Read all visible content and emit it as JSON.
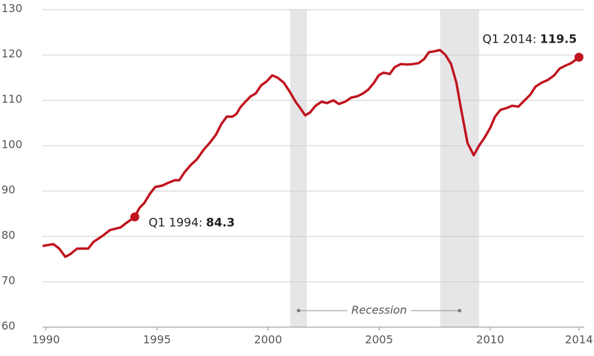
{
  "chart_data": {
    "type": "line",
    "x": [
      1989.85,
      1990.34,
      1990.6,
      1990.87,
      1991.1,
      1991.4,
      1991.64,
      1991.9,
      1992.14,
      1992.57,
      1992.88,
      1993.37,
      1993.6,
      1994.0,
      1994.2,
      1994.43,
      1994.68,
      1994.92,
      1995.23,
      1995.5,
      1995.8,
      1996.0,
      1996.25,
      1996.53,
      1996.8,
      1997.1,
      1997.37,
      1997.65,
      1997.9,
      1998.14,
      1998.39,
      1998.58,
      1998.76,
      1998.98,
      1999.22,
      1999.44,
      1999.69,
      1999.94,
      2000.19,
      2000.43,
      2000.71,
      2000.99,
      2001.24,
      2001.46,
      2001.67,
      2001.89,
      2002.14,
      2002.41,
      2002.66,
      2002.94,
      2003.19,
      2003.47,
      2003.75,
      2004.02,
      2004.27,
      2004.52,
      2004.77,
      2004.98,
      2005.2,
      2005.48,
      2005.7,
      2005.98,
      2006.25,
      2006.53,
      2006.78,
      2007.03,
      2007.24,
      2007.49,
      2007.74,
      2007.99,
      2008.24,
      2008.48,
      2008.7,
      2008.98,
      2009.26,
      2009.5,
      2009.75,
      2010.0,
      2010.22,
      2010.46,
      2010.74,
      2010.99,
      2011.27,
      2011.55,
      2011.8,
      2012.04,
      2012.32,
      2012.6,
      2012.88,
      2013.13,
      2013.37,
      2013.65,
      2014.0
    ],
    "series": [
      {
        "color": "#c0141e",
        "values": [
          77.9,
          78.3,
          77.3,
          75.5,
          76.1,
          77.3,
          77.3,
          77.3,
          78.8,
          80.2,
          81.4,
          82.0,
          82.9,
          84.3,
          86.2,
          87.4,
          89.4,
          90.9,
          91.2,
          91.8,
          92.4,
          92.4,
          94.2,
          95.8,
          97.0,
          99.1,
          100.6,
          102.4,
          104.8,
          106.4,
          106.4,
          107.0,
          108.5,
          109.7,
          110.9,
          111.5,
          113.3,
          114.2,
          115.5,
          115.0,
          113.9,
          111.8,
          109.7,
          108.2,
          106.7,
          107.3,
          108.8,
          109.7,
          109.4,
          110.0,
          109.2,
          109.7,
          110.6,
          110.9,
          111.5,
          112.4,
          113.9,
          115.5,
          116.1,
          115.8,
          117.3,
          118.0,
          117.9,
          118.0,
          118.2,
          119.1,
          120.6,
          120.8,
          121.1,
          120.0,
          118.0,
          113.9,
          107.9,
          100.6,
          97.9,
          100.0,
          101.8,
          103.9,
          106.4,
          107.9,
          108.3,
          108.8,
          108.6,
          110.0,
          111.2,
          113.0,
          113.9,
          114.5,
          115.5,
          117.0,
          117.6,
          118.2,
          119.5
        ]
      }
    ],
    "xlim": [
      1989.85,
      2014.15
    ],
    "xticks": [
      1990,
      1995,
      2000,
      2005,
      2010,
      2014
    ],
    "ylim": [
      60,
      130
    ],
    "yticks": [
      60,
      70,
      80,
      90,
      100,
      110,
      120,
      130
    ],
    "grid": true,
    "recessions": [
      [
        2001.0,
        2001.75
      ],
      [
        2007.75,
        2009.5
      ]
    ],
    "recession_label": "Recession",
    "annotations": [
      {
        "label": "Q1 1994:",
        "x": 1994.0,
        "value": 84.3
      },
      {
        "label": "Q1 2014:",
        "x": 2014.0,
        "value": 119.5
      }
    ]
  }
}
